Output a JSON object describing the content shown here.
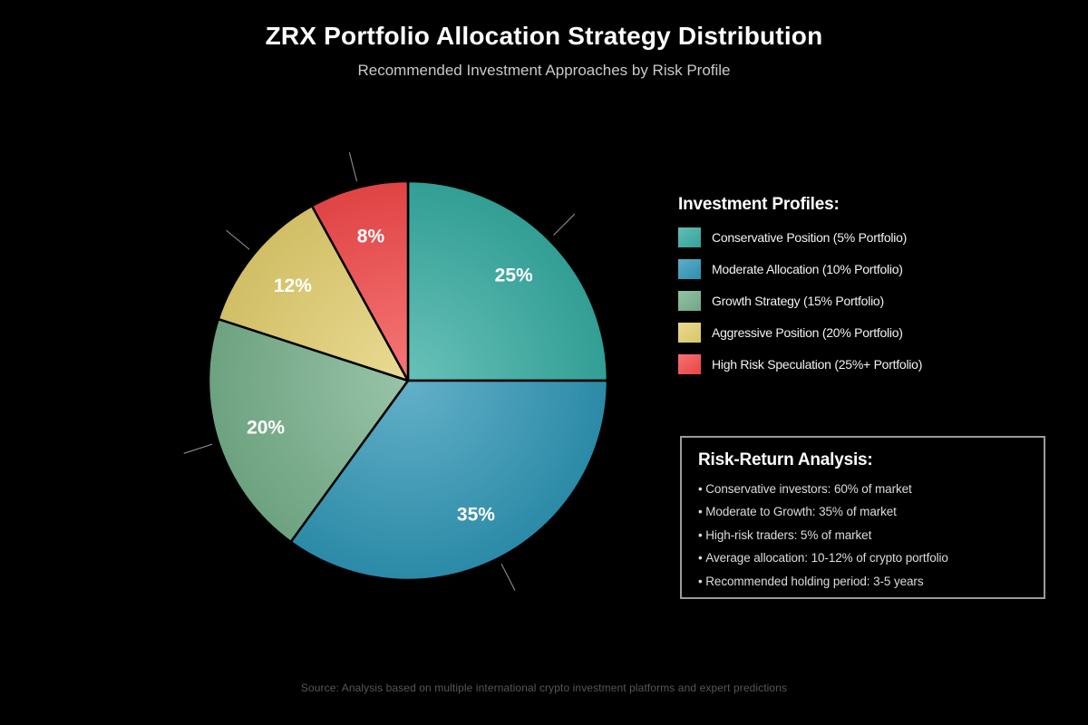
{
  "header": {
    "title": "ZRX Portfolio Allocation Strategy Distribution",
    "subtitle": "Recommended Investment Approaches by Risk Profile"
  },
  "chart_data": {
    "type": "pie",
    "title": "ZRX Portfolio Allocation Strategy Distribution",
    "subtitle": "Recommended Investment Approaches by Risk Profile",
    "unit": "percent",
    "start_angle_deg": 0,
    "direction": "clockwise",
    "legend_position": "right",
    "slices": [
      {
        "legend_label": "Conservative Position (5% Portfolio)",
        "data_label": "25%",
        "value": 25,
        "color": "#36aca1"
      },
      {
        "legend_label": "Moderate Allocation (10% Portfolio)",
        "data_label": "35%",
        "value": 35,
        "color": "#2f96b6"
      },
      {
        "legend_label": "Growth Strategy (15% Portfolio)",
        "data_label": "20%",
        "value": 20,
        "color": "#76b08b"
      },
      {
        "legend_label": "Aggressive Position (20% Portfolio)",
        "data_label": "12%",
        "value": 12,
        "color": "#e3cf6f"
      },
      {
        "legend_label": "High Risk Speculation (25%+ Portfolio)",
        "data_label": "8%",
        "value": 8,
        "color": "#f3494a"
      }
    ]
  },
  "legend": {
    "title": "Investment Profiles:"
  },
  "analysis_box": {
    "title": "Risk-Return Analysis:",
    "bullets": [
      "Conservative investors: 60% of market",
      "Moderate to Growth: 35% of market",
      "High-risk traders: 5% of market",
      "Average allocation: 10-12% of crypto portfolio",
      "Recommended holding period: 3-5 years"
    ]
  },
  "footer": {
    "source": "Source: Analysis based on multiple international crypto investment platforms and expert predictions"
  },
  "colors": {
    "background": "#000000",
    "slice_label_text": "#ffffff",
    "slice_stroke": "#000000",
    "leader_line": "#999999",
    "box_border": "#9b9b9b"
  }
}
